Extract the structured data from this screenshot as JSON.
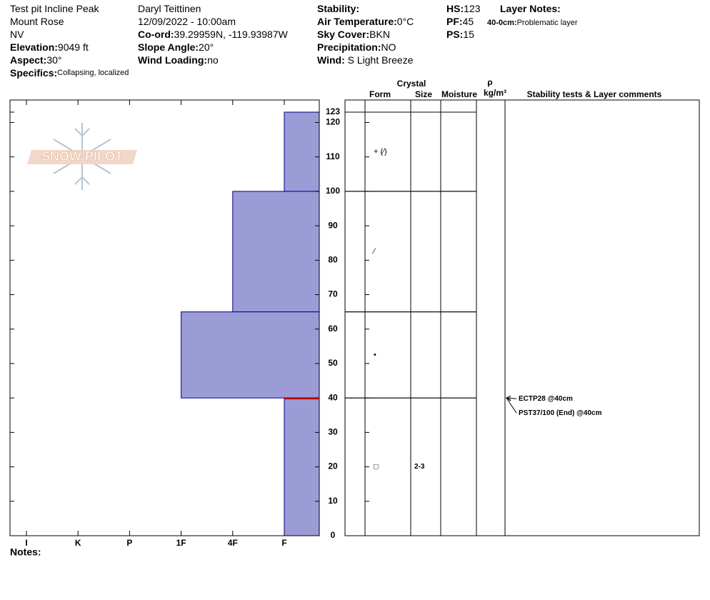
{
  "header": {
    "columns": [
      {
        "items": [
          "Test pit Incline Peak",
          "Mount Rose",
          "NV",
          {
            "label": "Elevation:",
            "value": "9049 ft"
          },
          {
            "label": "Aspect:",
            "value": "30°"
          },
          {
            "label": "Specifics:",
            "value": "Collapsing, localized"
          }
        ]
      },
      {
        "items": [
          "Daryl Teittinen",
          "12/09/2022 - 10:00am",
          {
            "label": "Co-ord:",
            "value": "39.29959N, -119.93987W"
          },
          {
            "label": "Slope Angle:",
            "value": "20°"
          },
          {
            "label": "Wind Loading:",
            "value": "no"
          }
        ]
      },
      {
        "items": [
          {
            "label": "Stability:"
          },
          {
            "label": "Air Temperature:",
            "value": "0°C"
          },
          {
            "label": "Sky Cover:",
            "value": "BKN"
          },
          {
            "label": "Precipitation:",
            "value": "NO"
          },
          {
            "label": "Wind:",
            "value": " S Light Breeze"
          }
        ]
      },
      {
        "items": [
          {
            "label": "HS:",
            "value": "123"
          },
          {
            "label": "PF:",
            "value": "45"
          },
          {
            "label": "PS:",
            "value": "15"
          }
        ]
      }
    ],
    "layer_notes": {
      "title": "Layer Notes:",
      "depth": "40-0cm:",
      "text": "Problematic layer"
    }
  },
  "logo": "SNOW PILOT",
  "chart_data": {
    "type": "snow_profile",
    "hardness_categories": [
      "I",
      "K",
      "P",
      "1F",
      "4F",
      "F"
    ],
    "ylim": [
      0,
      123
    ],
    "yticks": [
      0,
      10,
      20,
      30,
      40,
      50,
      60,
      70,
      80,
      90,
      100,
      110,
      120,
      123
    ],
    "color": "#9b9bd6",
    "columns": {
      "crystal": "Crystal",
      "form": "Form",
      "size": "Size",
      "moisture": "Moisture",
      "rho": "ρ",
      "density": "kg/m³",
      "stability": "Stability tests & Layer comments"
    },
    "layers": [
      {
        "top": 123,
        "bottom": 100,
        "hardness": "F",
        "form": "+ (⁄)"
      },
      {
        "top": 100,
        "bottom": 65,
        "hardness": "4F",
        "form": "⁄"
      },
      {
        "top": 65,
        "bottom": 40,
        "hardness": "1F",
        "form": "•"
      },
      {
        "top": 40,
        "bottom": 0,
        "hardness": "F",
        "form": "□",
        "size": "2-3"
      }
    ],
    "stability_tests": [
      {
        "text": "ECTP28 @40cm",
        "depth": 40
      },
      {
        "text": "PST37/100 (End) @40cm",
        "depth": 40
      }
    ],
    "notes": "Notes:"
  }
}
